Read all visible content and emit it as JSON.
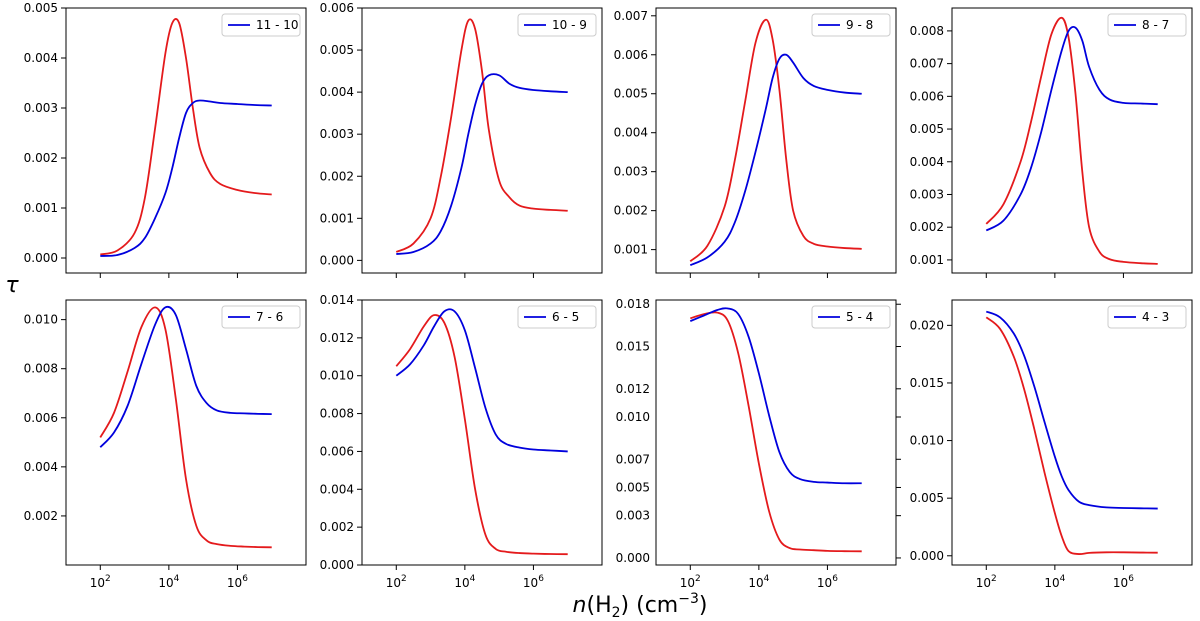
{
  "chart_data": {
    "type": "line",
    "xlabel": "n(H2) (cm-3)",
    "ylabel": "τ",
    "xscale": "log",
    "xlim": [
      1.0,
      8.0
    ],
    "xticks": [
      2,
      4,
      6
    ],
    "series_colors": {
      "red": "#e41a1c",
      "blue": "#0000dd"
    },
    "panels": [
      {
        "legend": "11 - 10",
        "ylim": [
          -0.0003,
          0.005
        ],
        "yticks": [
          0.0,
          0.001,
          0.002,
          0.003,
          0.004,
          0.005
        ],
        "ytick_labels": [
          "0.000",
          "0.001",
          "0.002",
          "0.003",
          "0.004",
          "0.005"
        ],
        "ytick_side": "left",
        "x": [
          2.0,
          2.5,
          3.0,
          3.3,
          3.6,
          3.9,
          4.1,
          4.3,
          4.5,
          4.7,
          4.9,
          5.2,
          5.5,
          6.0,
          6.5,
          7.0
        ],
        "red": [
          7e-05,
          0.00015,
          0.0005,
          0.0012,
          0.0026,
          0.0041,
          0.0047,
          0.0047,
          0.004,
          0.003,
          0.0022,
          0.0017,
          0.00148,
          0.00136,
          0.0013,
          0.00127
        ],
        "blue": [
          4e-05,
          6e-05,
          0.0002,
          0.0004,
          0.0008,
          0.0013,
          0.0018,
          0.0024,
          0.0029,
          0.0031,
          0.00315,
          0.00313,
          0.0031,
          0.00308,
          0.00306,
          0.00305
        ]
      },
      {
        "legend": "10 - 9",
        "ylim": [
          -0.0003,
          0.006
        ],
        "yticks": [
          0.0,
          0.001,
          0.002,
          0.003,
          0.004,
          0.005,
          0.006
        ],
        "ytick_labels": [
          "0.000",
          "0.001",
          "0.002",
          "0.003",
          "0.004",
          "0.005",
          "0.006"
        ],
        "ytick_side": "left",
        "x": [
          2.0,
          2.5,
          3.0,
          3.3,
          3.6,
          3.9,
          4.1,
          4.3,
          4.5,
          4.7,
          5.0,
          5.3,
          5.6,
          6.0,
          6.5,
          7.0
        ],
        "red": [
          0.0002,
          0.0004,
          0.001,
          0.002,
          0.0034,
          0.005,
          0.0057,
          0.0055,
          0.0045,
          0.0031,
          0.0019,
          0.0015,
          0.0013,
          0.00123,
          0.0012,
          0.00118
        ],
        "blue": [
          0.00015,
          0.0002,
          0.0004,
          0.0007,
          0.0013,
          0.0022,
          0.003,
          0.0037,
          0.0042,
          0.0044,
          0.0044,
          0.0042,
          0.0041,
          0.00405,
          0.00402,
          0.004
        ]
      },
      {
        "legend": "9 - 8",
        "ylim": [
          0.0004,
          0.0072
        ],
        "yticks": [
          0.001,
          0.002,
          0.003,
          0.004,
          0.005,
          0.006,
          0.007
        ],
        "ytick_labels": [
          "0.001",
          "0.002",
          "0.003",
          "0.004",
          "0.005",
          "0.006",
          "0.007"
        ],
        "ytick_side": "left",
        "x": [
          2.0,
          2.5,
          3.0,
          3.3,
          3.6,
          3.9,
          4.2,
          4.4,
          4.6,
          4.8,
          5.0,
          5.3,
          5.6,
          6.0,
          6.5,
          7.0
        ],
        "red": [
          0.0007,
          0.0011,
          0.0021,
          0.0033,
          0.0048,
          0.0063,
          0.0069,
          0.0064,
          0.0051,
          0.0033,
          0.002,
          0.00135,
          0.00115,
          0.00108,
          0.00104,
          0.00102
        ],
        "blue": [
          0.0006,
          0.0008,
          0.0012,
          0.0017,
          0.0025,
          0.0035,
          0.0046,
          0.0054,
          0.0059,
          0.006,
          0.0058,
          0.0054,
          0.0052,
          0.0051,
          0.00503,
          0.005
        ]
      },
      {
        "legend": "8 - 7",
        "ylim": [
          0.0006,
          0.0087
        ],
        "yticks": [
          0.001,
          0.002,
          0.003,
          0.004,
          0.005,
          0.006,
          0.007,
          0.008
        ],
        "ytick_labels": [
          "0.001",
          "0.002",
          "0.003",
          "0.004",
          "0.005",
          "0.006",
          "0.007",
          "0.008"
        ],
        "ytick_side": "left",
        "x": [
          2.0,
          2.5,
          3.0,
          3.3,
          3.6,
          3.9,
          4.2,
          4.4,
          4.6,
          4.8,
          5.0,
          5.3,
          5.6,
          6.0,
          6.5,
          7.0
        ],
        "red": [
          0.0021,
          0.0027,
          0.004,
          0.0052,
          0.0066,
          0.0079,
          0.0084,
          0.0078,
          0.0061,
          0.0037,
          0.002,
          0.00125,
          0.00102,
          0.00094,
          0.0009,
          0.00088
        ],
        "blue": [
          0.0019,
          0.0022,
          0.003,
          0.0038,
          0.0049,
          0.0062,
          0.0074,
          0.008,
          0.0081,
          0.0077,
          0.0069,
          0.0062,
          0.0059,
          0.0058,
          0.00578,
          0.00576
        ]
      },
      {
        "legend": "7 - 6",
        "ylim": [
          0.0,
          0.0108
        ],
        "yticks": [
          0.002,
          0.004,
          0.006,
          0.008,
          0.01
        ],
        "ytick_labels": [
          "0.002",
          "0.004",
          "0.006",
          "0.008",
          "0.010"
        ],
        "ytick_side": "left",
        "x": [
          2.0,
          2.4,
          2.8,
          3.2,
          3.6,
          3.9,
          4.2,
          4.5,
          4.8,
          5.1,
          5.4,
          5.8,
          6.2,
          6.6,
          7.0
        ],
        "red": [
          0.0052,
          0.0062,
          0.0079,
          0.0097,
          0.0105,
          0.0096,
          0.0068,
          0.0035,
          0.0016,
          0.001,
          0.00085,
          0.00078,
          0.00075,
          0.00073,
          0.00072
        ],
        "blue": [
          0.0048,
          0.0054,
          0.0065,
          0.0082,
          0.0098,
          0.0105,
          0.0102,
          0.0088,
          0.0073,
          0.0066,
          0.0063,
          0.0062,
          0.00618,
          0.00616,
          0.00615
        ]
      },
      {
        "legend": "6 - 5",
        "ylim": [
          0.0,
          0.014
        ],
        "yticks": [
          0.0,
          0.002,
          0.004,
          0.006,
          0.008,
          0.01,
          0.012,
          0.014
        ],
        "ytick_labels": [
          "0.000",
          "0.002",
          "0.004",
          "0.006",
          "0.008",
          "0.010",
          "0.012",
          "0.014"
        ],
        "ytick_side": "left",
        "x": [
          2.0,
          2.4,
          2.8,
          3.1,
          3.4,
          3.7,
          4.0,
          4.3,
          4.6,
          4.9,
          5.2,
          5.6,
          6.0,
          6.5,
          7.0
        ],
        "red": [
          0.0105,
          0.0114,
          0.0126,
          0.0132,
          0.0128,
          0.011,
          0.0077,
          0.004,
          0.0016,
          0.00085,
          0.0007,
          0.00063,
          0.0006,
          0.00058,
          0.00057
        ],
        "blue": [
          0.01,
          0.0106,
          0.0116,
          0.0126,
          0.0134,
          0.0134,
          0.0124,
          0.0104,
          0.0083,
          0.0069,
          0.0064,
          0.0062,
          0.0061,
          0.00605,
          0.006
        ]
      },
      {
        "legend": "5 - 4",
        "ylim": [
          -0.0005,
          0.0183
        ],
        "yticks": [
          0.0,
          0.003,
          0.005,
          0.007,
          0.01,
          0.012,
          0.015,
          0.018
        ],
        "ytick_labels": [
          "0.000",
          "0.003",
          "0.005",
          "0.007",
          "0.010",
          "0.012",
          "0.015",
          "0.018"
        ],
        "ytick_side": "right",
        "x": [
          2.0,
          2.4,
          2.8,
          3.1,
          3.4,
          3.7,
          4.0,
          4.3,
          4.6,
          4.9,
          5.2,
          5.6,
          6.0,
          6.5,
          7.0
        ],
        "red": [
          0.017,
          0.0173,
          0.0174,
          0.0168,
          0.0145,
          0.0108,
          0.0067,
          0.0033,
          0.0013,
          0.0007,
          0.0006,
          0.00055,
          0.0005,
          0.00048,
          0.00047
        ],
        "blue": [
          0.0168,
          0.0172,
          0.0176,
          0.0177,
          0.0173,
          0.0157,
          0.0131,
          0.0101,
          0.0075,
          0.0061,
          0.0056,
          0.0054,
          0.00535,
          0.0053,
          0.0053
        ]
      },
      {
        "legend": "4 - 3",
        "ylim": [
          -0.0008,
          0.0222
        ],
        "yticks": [
          0.0,
          0.005,
          0.01,
          0.015,
          0.02
        ],
        "ytick_labels": [
          "0.000",
          "0.005",
          "0.010",
          "0.015",
          "0.020"
        ],
        "ytick_side": "left",
        "x": [
          2.0,
          2.4,
          2.8,
          3.1,
          3.4,
          3.7,
          4.0,
          4.2,
          4.4,
          4.7,
          5.0,
          5.5,
          6.0,
          6.5,
          7.0
        ],
        "red": [
          0.0207,
          0.0197,
          0.0173,
          0.0145,
          0.011,
          0.0072,
          0.0037,
          0.0017,
          0.0004,
          0.00015,
          0.00025,
          0.0003,
          0.0003,
          0.00028,
          0.00027
        ],
        "blue": [
          0.0212,
          0.0207,
          0.0193,
          0.0174,
          0.0147,
          0.0116,
          0.0086,
          0.0069,
          0.0057,
          0.0047,
          0.0044,
          0.0042,
          0.00415,
          0.00412,
          0.0041
        ]
      }
    ]
  }
}
